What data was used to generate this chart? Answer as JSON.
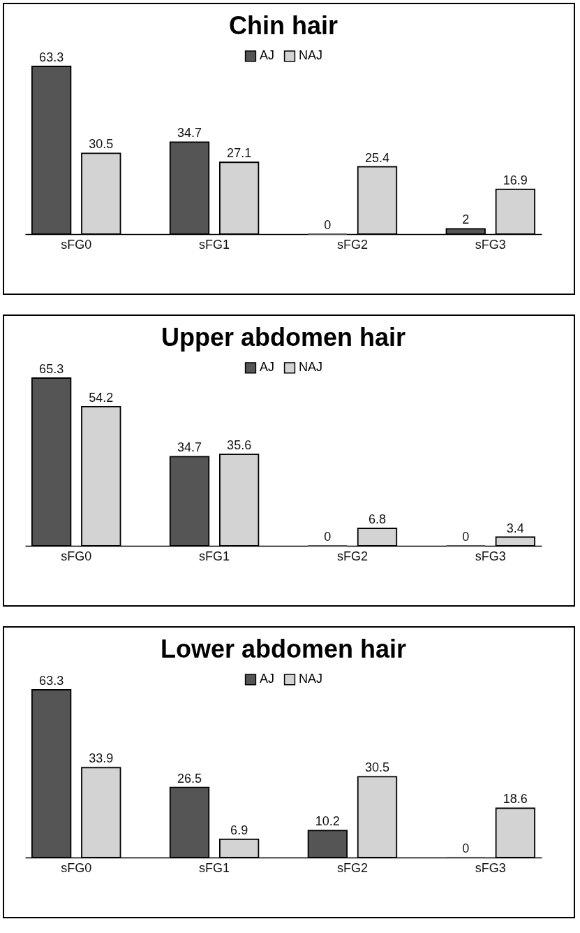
{
  "chart_data": [
    {
      "type": "bar",
      "title": "Chin hair",
      "categories": [
        "sFG0",
        "sFG1",
        "sFG2",
        "sFG3"
      ],
      "series": [
        {
          "name": "AJ",
          "color": "#555555",
          "values": [
            63.3,
            34.7,
            0,
            2
          ]
        },
        {
          "name": "NAJ",
          "color": "#d3d3d3",
          "values": [
            30.5,
            27.1,
            25.4,
            16.9
          ]
        }
      ],
      "data_labels": true,
      "legend": "top",
      "grid": false,
      "tick_labels": "x"
    },
    {
      "type": "bar",
      "title": "Upper abdomen hair",
      "categories": [
        "sFG0",
        "sFG1",
        "sFG2",
        "sFG3"
      ],
      "series": [
        {
          "name": "AJ",
          "color": "#555555",
          "values": [
            65.3,
            34.7,
            0,
            0
          ]
        },
        {
          "name": "NAJ",
          "color": "#d3d3d3",
          "values": [
            54.2,
            35.6,
            6.8,
            3.4
          ]
        }
      ],
      "data_labels": true,
      "legend": "top",
      "grid": false,
      "tick_labels": "x"
    },
    {
      "type": "bar",
      "title": "Lower abdomen hair",
      "categories": [
        "sFG0",
        "sFG1",
        "sFG2",
        "sFG3"
      ],
      "series": [
        {
          "name": "AJ",
          "color": "#555555",
          "values": [
            63.3,
            26.5,
            10.2,
            0
          ]
        },
        {
          "name": "NAJ",
          "color": "#d3d3d3",
          "values": [
            33.9,
            6.9,
            30.5,
            18.6
          ]
        }
      ],
      "data_labels": true,
      "legend": "top",
      "grid": false,
      "tick_labels": "x"
    }
  ]
}
